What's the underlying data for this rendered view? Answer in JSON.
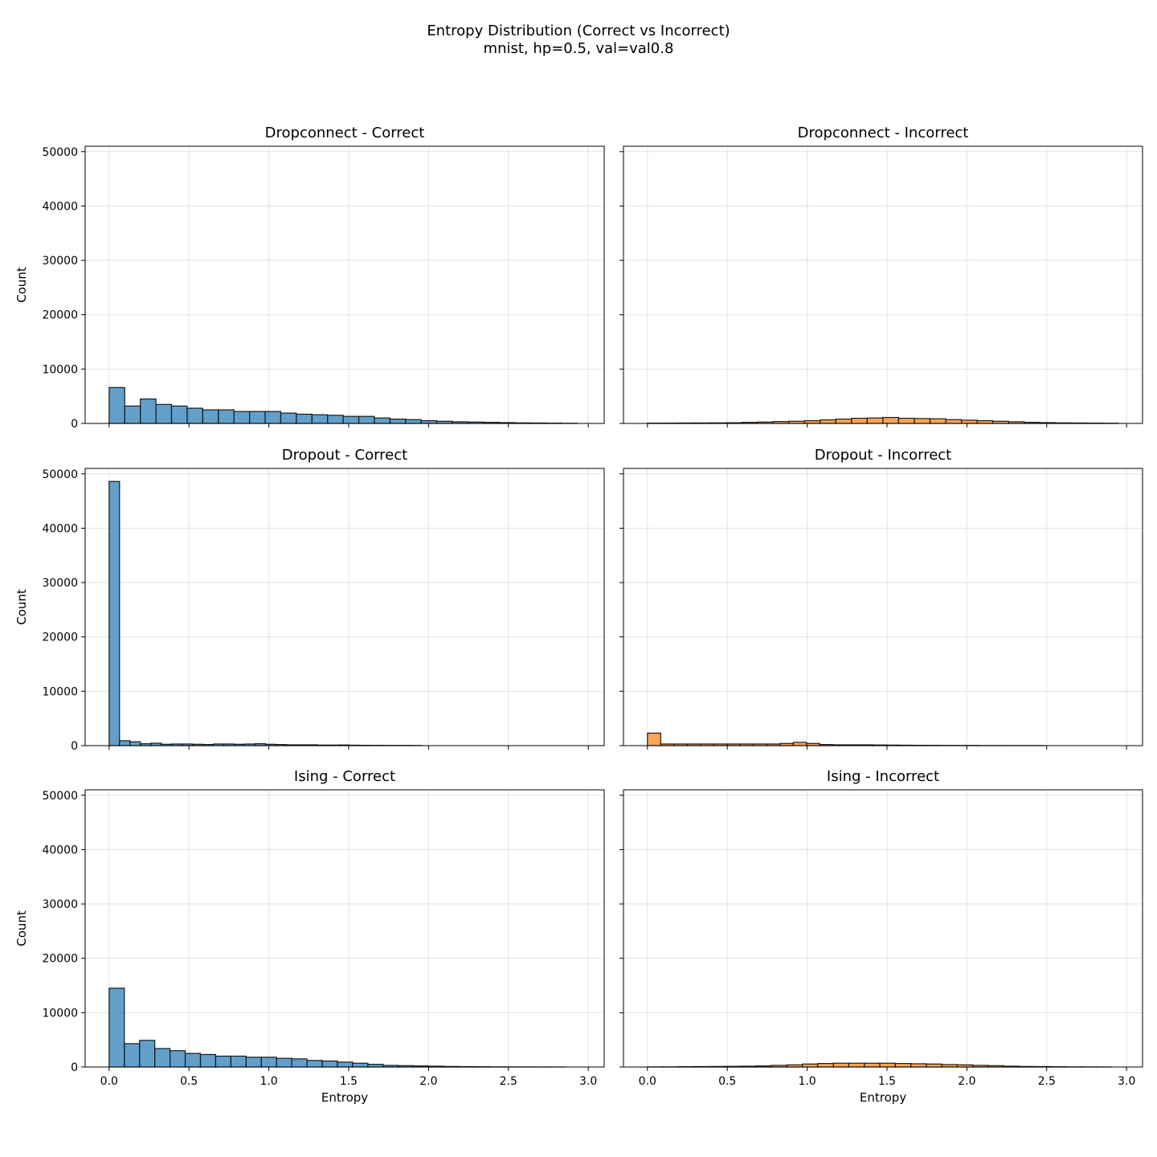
{
  "figure": {
    "title": "Entropy Distribution (Correct vs Incorrect)",
    "subtitle": "mnist, hp=0.5, val=val0.8"
  },
  "colors": {
    "correct": "#1f77b4",
    "incorrect": "#ff7f0e"
  },
  "chart_data": [
    {
      "type": "bar",
      "title": "Dropconnect - Correct",
      "xlabel": "",
      "ylabel": "Count",
      "series_color": "correct",
      "bin_width": 0.0977,
      "x": [
        0.0,
        0.0977,
        0.1954,
        0.2931,
        0.3908,
        0.4885,
        0.5862,
        0.6839,
        0.7816,
        0.8793,
        0.977,
        1.0747,
        1.1724,
        1.2701,
        1.3678,
        1.4655,
        1.5632,
        1.6609,
        1.7586,
        1.8563,
        1.954,
        2.0517,
        2.1494,
        2.2471,
        2.3448,
        2.4425,
        2.5402,
        2.6379,
        2.7356,
        2.8333
      ],
      "values": [
        6600,
        3200,
        4500,
        3500,
        3200,
        2800,
        2500,
        2500,
        2200,
        2200,
        2200,
        1900,
        1700,
        1600,
        1500,
        1300,
        1300,
        1000,
        800,
        700,
        500,
        400,
        300,
        250,
        200,
        150,
        100,
        80,
        50,
        30
      ],
      "xlim": [
        -0.15,
        3.1
      ],
      "ylim": [
        0,
        51000
      ],
      "xticks": [
        0.0,
        0.5,
        1.0,
        1.5,
        2.0,
        2.5,
        3.0
      ],
      "yticks": [
        0,
        10000,
        20000,
        30000,
        40000,
        50000
      ],
      "grid": true
    },
    {
      "type": "bar",
      "title": "Dropconnect - Incorrect",
      "xlabel": "",
      "ylabel": "",
      "series_color": "incorrect",
      "bin_width": 0.0983,
      "x": [
        0.0,
        0.0983,
        0.1966,
        0.2949,
        0.3932,
        0.4915,
        0.5898,
        0.6881,
        0.7864,
        0.8847,
        0.983,
        1.0813,
        1.1796,
        1.2779,
        1.3762,
        1.4745,
        1.5728,
        1.6711,
        1.7694,
        1.8677,
        1.966,
        2.0643,
        2.1626,
        2.2609,
        2.3592,
        2.4575,
        2.5558,
        2.6541,
        2.7524,
        2.8507
      ],
      "values": [
        50,
        60,
        80,
        90,
        100,
        120,
        200,
        250,
        350,
        400,
        500,
        650,
        800,
        950,
        1000,
        1100,
        950,
        900,
        850,
        700,
        600,
        500,
        400,
        300,
        200,
        150,
        100,
        80,
        60,
        40
      ],
      "xlim": [
        -0.15,
        3.1
      ],
      "ylim": [
        0,
        51000
      ],
      "xticks": [
        0.0,
        0.5,
        1.0,
        1.5,
        2.0,
        2.5,
        3.0
      ],
      "yticks": [
        0,
        10000,
        20000,
        30000,
        40000,
        50000
      ],
      "grid": true
    },
    {
      "type": "bar",
      "title": "Dropout - Correct",
      "xlabel": "",
      "ylabel": "Count",
      "series_color": "correct",
      "bin_width": 0.0653,
      "x": [
        0.0,
        0.0653,
        0.1306,
        0.1959,
        0.2612,
        0.3265,
        0.3918,
        0.4571,
        0.5224,
        0.5877,
        0.653,
        0.7183,
        0.7836,
        0.8489,
        0.9142,
        0.9795,
        1.0448,
        1.1101,
        1.1754,
        1.2407,
        1.306,
        1.3713,
        1.4366,
        1.5019,
        1.5672,
        1.6325,
        1.6978,
        1.7631,
        1.8284,
        1.8937
      ],
      "values": [
        48600,
        900,
        700,
        350,
        450,
        250,
        300,
        300,
        250,
        200,
        300,
        300,
        250,
        300,
        350,
        250,
        200,
        150,
        150,
        150,
        100,
        100,
        120,
        80,
        60,
        50,
        40,
        30,
        30,
        20
      ],
      "xlim": [
        -0.15,
        3.1
      ],
      "ylim": [
        0,
        51000
      ],
      "xticks": [
        0.0,
        0.5,
        1.0,
        1.5,
        2.0,
        2.5,
        3.0
      ],
      "yticks": [
        0,
        10000,
        20000,
        30000,
        40000,
        50000
      ],
      "grid": true
    },
    {
      "type": "bar",
      "title": "Dropout - Incorrect",
      "xlabel": "",
      "ylabel": "",
      "series_color": "incorrect",
      "bin_width": 0.083,
      "x": [
        0.0,
        0.083,
        0.166,
        0.249,
        0.332,
        0.415,
        0.498,
        0.581,
        0.664,
        0.747,
        0.83,
        0.913,
        0.996,
        1.079,
        1.162,
        1.245,
        1.328,
        1.411,
        1.494,
        1.577,
        1.66,
        1.743,
        1.826,
        1.909,
        1.992,
        2.075,
        2.158,
        2.241,
        2.324,
        2.407
      ],
      "values": [
        2300,
        300,
        300,
        300,
        300,
        300,
        300,
        300,
        300,
        300,
        400,
        600,
        400,
        200,
        150,
        150,
        150,
        120,
        100,
        80,
        60,
        50,
        40,
        30,
        30,
        20,
        20,
        15,
        10,
        10
      ],
      "xlim": [
        -0.15,
        3.1
      ],
      "ylim": [
        0,
        51000
      ],
      "xticks": [
        0.0,
        0.5,
        1.0,
        1.5,
        2.0,
        2.5,
        3.0
      ],
      "yticks": [
        0,
        10000,
        20000,
        30000,
        40000,
        50000
      ],
      "grid": true
    },
    {
      "type": "bar",
      "title": "Ising - Correct",
      "xlabel": "Entropy",
      "ylabel": "Count",
      "series_color": "correct",
      "bin_width": 0.0953,
      "x": [
        0.0,
        0.0953,
        0.1906,
        0.2859,
        0.3812,
        0.4765,
        0.5718,
        0.6671,
        0.7624,
        0.8577,
        0.953,
        1.0483,
        1.1436,
        1.2389,
        1.3342,
        1.4295,
        1.5248,
        1.6201,
        1.7154,
        1.8107,
        1.906,
        2.0013,
        2.0966,
        2.1919,
        2.2872,
        2.3825,
        2.4778,
        2.5731,
        2.6684,
        2.7637
      ],
      "values": [
        14500,
        4300,
        4900,
        3400,
        3000,
        2500,
        2300,
        2000,
        2000,
        1800,
        1800,
        1600,
        1500,
        1200,
        1100,
        900,
        700,
        500,
        300,
        250,
        200,
        150,
        100,
        70,
        50,
        30,
        20,
        15,
        10,
        5
      ],
      "xlim": [
        -0.15,
        3.1
      ],
      "ylim": [
        0,
        51000
      ],
      "xticks": [
        0.0,
        0.5,
        1.0,
        1.5,
        2.0,
        2.5,
        3.0
      ],
      "yticks": [
        0,
        10000,
        20000,
        30000,
        40000,
        50000
      ],
      "grid": true
    },
    {
      "type": "bar",
      "title": "Ising - Incorrect",
      "xlabel": "Entropy",
      "ylabel": "",
      "series_color": "incorrect",
      "bin_width": 0.097,
      "x": [
        0.0,
        0.097,
        0.194,
        0.291,
        0.388,
        0.485,
        0.582,
        0.679,
        0.776,
        0.873,
        0.97,
        1.067,
        1.164,
        1.261,
        1.358,
        1.455,
        1.552,
        1.649,
        1.746,
        1.843,
        1.94,
        2.037,
        2.134,
        2.231,
        2.328,
        2.425,
        2.522,
        2.619,
        2.716,
        2.813
      ],
      "values": [
        20,
        30,
        60,
        80,
        100,
        120,
        150,
        200,
        300,
        400,
        550,
        650,
        700,
        700,
        700,
        700,
        650,
        600,
        550,
        450,
        400,
        300,
        250,
        150,
        100,
        80,
        50,
        30,
        20,
        10
      ],
      "xlim": [
        -0.15,
        3.1
      ],
      "ylim": [
        0,
        51000
      ],
      "xticks": [
        0.0,
        0.5,
        1.0,
        1.5,
        2.0,
        2.5,
        3.0
      ],
      "yticks": [
        0,
        10000,
        20000,
        30000,
        40000,
        50000
      ],
      "grid": true
    }
  ]
}
